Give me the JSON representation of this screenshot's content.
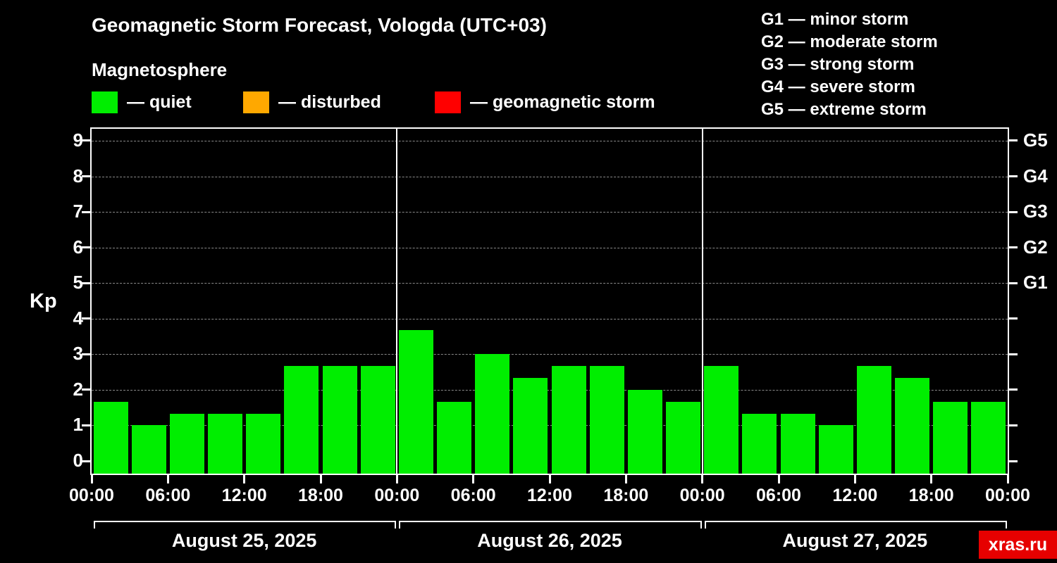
{
  "header": {
    "title": "Geomagnetic Storm Forecast, Vologda (UTC+03)",
    "subtitle": "Magnetosphere"
  },
  "legend": {
    "items": [
      {
        "label": "— quiet",
        "color": "#00ee00"
      },
      {
        "label": "— disturbed",
        "color": "#ffa800"
      },
      {
        "label": "— geomagnetic storm",
        "color": "#ff0000"
      }
    ]
  },
  "g_legend": [
    "G1 — minor storm",
    "G2 — moderate storm",
    "G3 — strong storm",
    "G4 — severe storm",
    "G5 — extreme storm"
  ],
  "chart_data": {
    "type": "bar",
    "title": "Geomagnetic Storm Forecast, Vologda (UTC+03)",
    "ylabel": "Kp",
    "ylim": [
      0,
      9.6
    ],
    "yticks": [
      0,
      1,
      2,
      3,
      4,
      5,
      6,
      7,
      8,
      9
    ],
    "right_axis_labels": [
      {
        "kp": 5,
        "label": "G1"
      },
      {
        "kp": 6,
        "label": "G2"
      },
      {
        "kp": 7,
        "label": "G3"
      },
      {
        "kp": 8,
        "label": "G4"
      },
      {
        "kp": 9,
        "label": "G5"
      }
    ],
    "grid": "horizontal-dashed",
    "kp_colors": {
      "quiet": "#00ee00",
      "disturbed": "#ffa800",
      "storm": "#ff0000"
    },
    "color_thresholds": {
      "disturbed_min": 4,
      "storm_min": 5
    },
    "time_ticks": [
      {
        "h": 0,
        "label": "00:00"
      },
      {
        "h": 6,
        "label": "06:00"
      },
      {
        "h": 12,
        "label": "12:00"
      },
      {
        "h": 18,
        "label": "18:00"
      }
    ],
    "end_tick_label": "00:00",
    "days": [
      {
        "date": "August 25, 2025",
        "values": [
          1.67,
          1.0,
          1.33,
          1.33,
          1.33,
          2.67,
          2.67,
          2.67
        ]
      },
      {
        "date": "August 26, 2025",
        "values": [
          3.67,
          1.67,
          3.0,
          2.33,
          2.67,
          2.67,
          2.0,
          1.67
        ]
      },
      {
        "date": "August 27, 2025",
        "values": [
          2.67,
          1.33,
          1.33,
          1.0,
          2.67,
          2.33,
          1.67,
          1.67
        ]
      }
    ]
  },
  "watermark": {
    "text": "xras.ru",
    "bg": "#e60000"
  }
}
